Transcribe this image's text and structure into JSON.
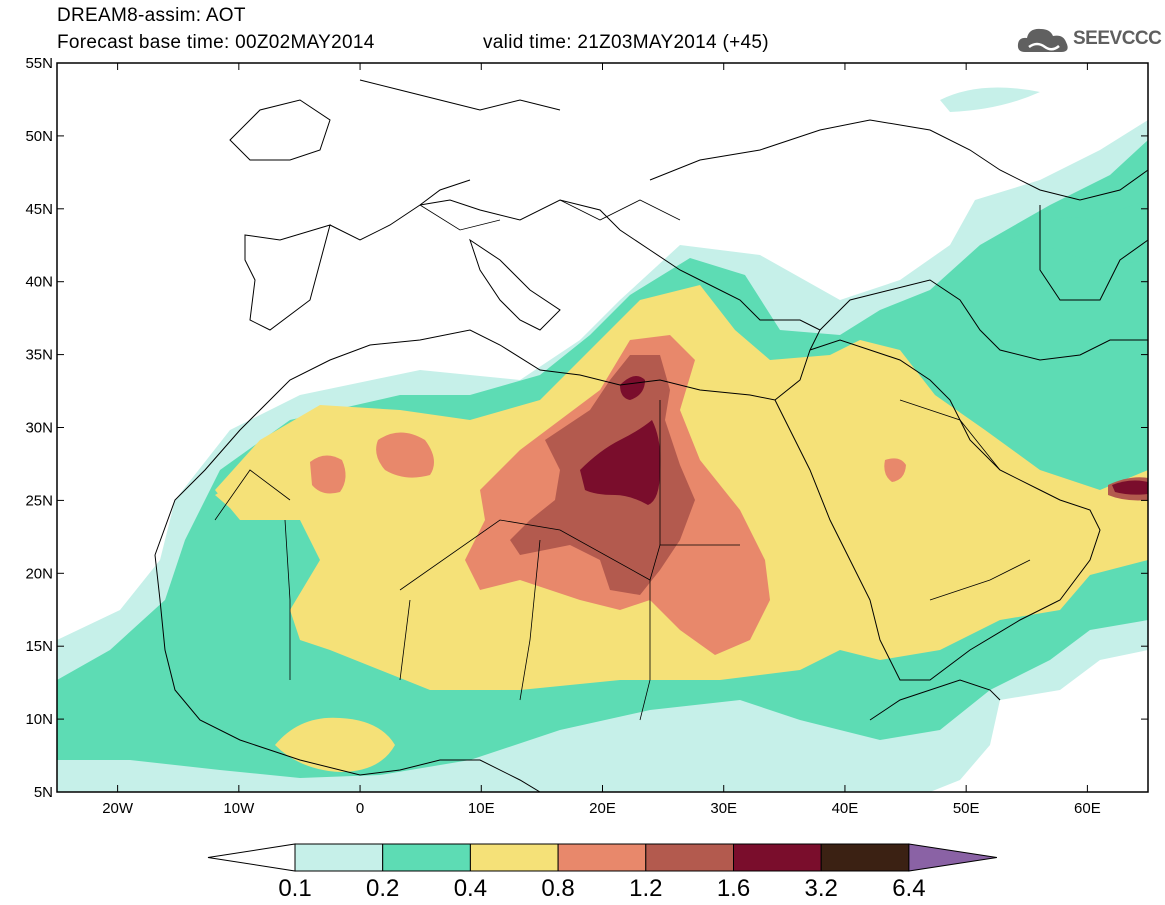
{
  "header": {
    "model_line": "DREAM8-assim: AOT",
    "base_time_line": "Forecast base time: 00Z02MAY2014",
    "valid_time_line": "valid time: 21Z03MAY2014 (+45)"
  },
  "logo": {
    "text": "SEEVCCC",
    "icon": "cloud-icon"
  },
  "map": {
    "lat_labels": [
      "55N",
      "50N",
      "45N",
      "40N",
      "35N",
      "30N",
      "25N",
      "20N",
      "15N",
      "10N",
      "5N"
    ],
    "lat_values": [
      55,
      50,
      45,
      40,
      35,
      30,
      25,
      20,
      15,
      10,
      5
    ],
    "lon_labels": [
      "20W",
      "10W",
      "0",
      "10E",
      "20E",
      "30E",
      "40E",
      "50E",
      "60E"
    ],
    "lon_values": [
      -20,
      -10,
      0,
      10,
      20,
      30,
      40,
      50,
      60
    ],
    "extent": {
      "lon_min": -25,
      "lon_max": 65,
      "lat_min": 5,
      "lat_max": 55
    }
  },
  "legend": {
    "labels": [
      "0.1",
      "0.2",
      "0.4",
      "0.8",
      "1.2",
      "1.6",
      "3.2",
      "6.4"
    ],
    "colors": [
      "#ffffff",
      "#c6f0e9",
      "#5ddcb4",
      "#f5e178",
      "#e8886b",
      "#b35a4e",
      "#7a0d2c",
      "#3b2113",
      "#8a62a5"
    ]
  }
}
